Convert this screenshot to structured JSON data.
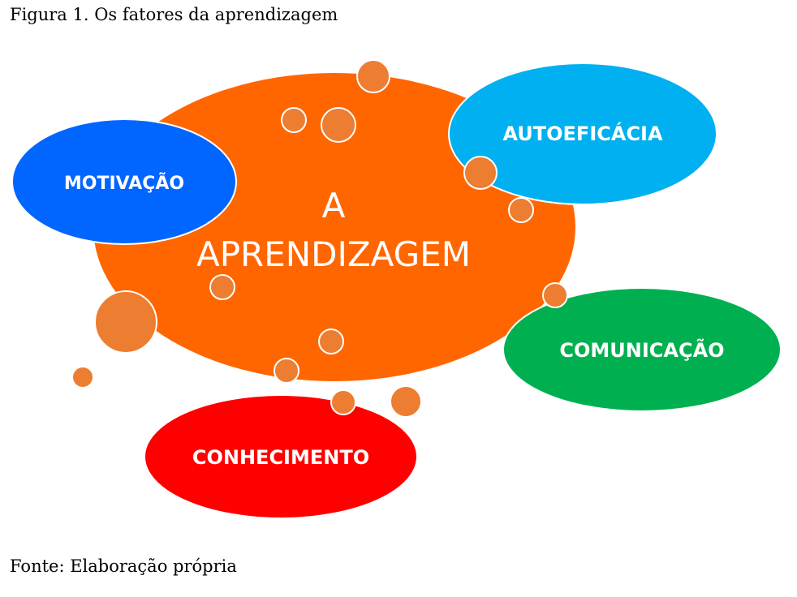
{
  "figure_title": "Figura 1. Os fatores da aprendizagem",
  "source": "Fonte: Elaboração própria",
  "diagram": {
    "center": {
      "line1": "A",
      "line2": "APRENDIZAGEM",
      "color": "#ff6600"
    },
    "factors": [
      {
        "label": "MOTIVAÇÃO",
        "color": "#0066ff"
      },
      {
        "label": "AUTOEFICÁCIA",
        "color": "#00b0f0"
      },
      {
        "label": "COMUNICAÇÃO",
        "color": "#00b050"
      },
      {
        "label": "CONHECIMENTO",
        "color": "#ff0000"
      }
    ],
    "bubble_color": "#ed7d31"
  }
}
